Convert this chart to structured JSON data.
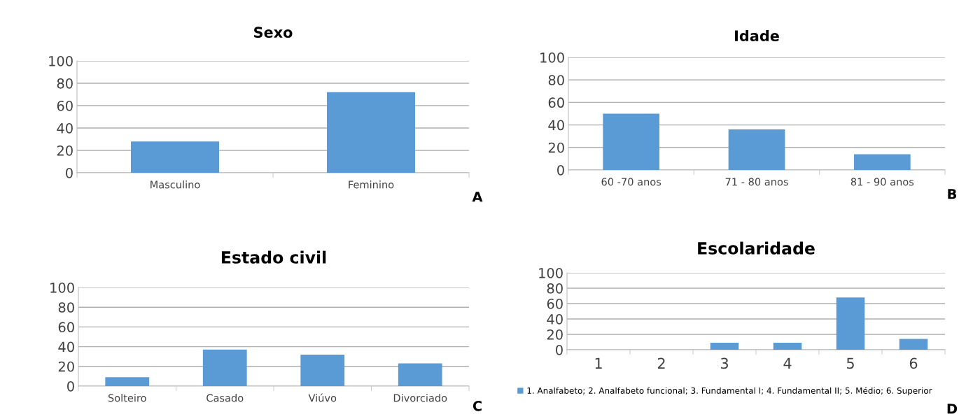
{
  "chart_data": [
    {
      "type": "bar",
      "title": "Sexo",
      "categories": [
        "Masculino",
        "Feminino"
      ],
      "values": [
        28,
        72
      ],
      "color": "#5b9bd5",
      "ylim": [
        0,
        100
      ],
      "yticks": [
        0,
        20,
        40,
        60,
        80,
        100
      ],
      "grid": "y",
      "annotations": [
        "A"
      ]
    },
    {
      "type": "bar",
      "title": "Idade",
      "categories": [
        "60 -70 anos",
        "71 - 80 anos",
        "81 - 90 anos"
      ],
      "values": [
        50,
        36,
        14
      ],
      "color": "#5b9bd5",
      "ylim": [
        0,
        100
      ],
      "yticks": [
        0,
        20,
        40,
        60,
        80,
        100
      ],
      "grid": "y",
      "annotations": [
        "B"
      ]
    },
    {
      "type": "bar",
      "title": "Estado civil",
      "categories": [
        "Solteiro",
        "Casado",
        "Viúvo",
        "Divorciado"
      ],
      "values": [
        9,
        37,
        32,
        23
      ],
      "color": "#5b9bd5",
      "ylim": [
        0,
        100
      ],
      "yticks": [
        0,
        20,
        40,
        60,
        80,
        100
      ],
      "grid": "y",
      "annotations": [
        "C"
      ]
    },
    {
      "type": "bar",
      "title": "Escolaridade",
      "categories": [
        "1",
        "2",
        "3",
        "4",
        "5",
        "6"
      ],
      "series": [
        {
          "name": "1. Analfabeto; 2. Analfabeto funcional; 3. Fundamental I; 4. Fundamental II; 5. Médio; 6. Superior",
          "color": "#5b9bd5",
          "values": [
            0,
            0,
            9,
            9,
            68,
            14
          ]
        }
      ],
      "ylim": [
        0,
        100
      ],
      "yticks": [
        0,
        20,
        40,
        60,
        80,
        100
      ],
      "grid": "y",
      "legend": "bottom",
      "annotations": [
        "D"
      ]
    }
  ]
}
